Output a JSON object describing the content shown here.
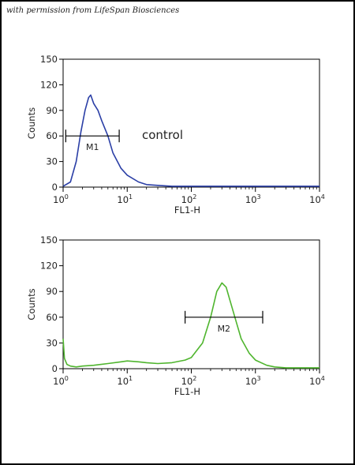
{
  "credit": "with permission from LifeSpan Biosciences",
  "chart_data": [
    {
      "type": "line",
      "xlabel": "FL1-H",
      "ylabel": "Counts",
      "xscale": "log",
      "xlim": [
        1,
        10000
      ],
      "ylim": [
        0,
        150
      ],
      "yticks": [
        0,
        30,
        60,
        90,
        120,
        150
      ],
      "xtick_bases": [
        "10",
        "10",
        "10",
        "10",
        "10"
      ],
      "xtick_exps": [
        "0",
        "1",
        "2",
        "3",
        "4"
      ],
      "grid": false,
      "annotation": "control",
      "series": [
        {
          "color": "#2b3fa6",
          "x": [
            1.0,
            1.3,
            1.6,
            1.9,
            2.2,
            2.5,
            2.7,
            3.0,
            3.5,
            4.0,
            5.0,
            6.0,
            8.0,
            10,
            15,
            20,
            30,
            50,
            100,
            200,
            500,
            1000,
            2000,
            5000,
            10000
          ],
          "y": [
            1,
            6,
            30,
            65,
            90,
            105,
            108,
            98,
            90,
            78,
            60,
            40,
            22,
            14,
            6,
            3,
            2,
            1,
            1,
            1,
            1,
            1,
            1,
            1,
            1
          ]
        }
      ],
      "markers": [
        {
          "label": "M1",
          "x_start": 1.1,
          "x_end": 7.5,
          "y": 60
        }
      ]
    },
    {
      "type": "line",
      "xlabel": "FL1-H",
      "ylabel": "Counts",
      "xscale": "log",
      "xlim": [
        1,
        10000
      ],
      "ylim": [
        0,
        150
      ],
      "yticks": [
        0,
        30,
        60,
        90,
        120,
        150
      ],
      "xtick_bases": [
        "10",
        "10",
        "10",
        "10",
        "10"
      ],
      "xtick_exps": [
        "0",
        "1",
        "2",
        "3",
        "4"
      ],
      "grid": false,
      "series": [
        {
          "color": "#4fb52e",
          "x": [
            1.0,
            1.05,
            1.15,
            1.3,
            1.6,
            2,
            3,
            5,
            8,
            10,
            15,
            20,
            30,
            50,
            80,
            100,
            150,
            200,
            250,
            300,
            350,
            400,
            500,
            600,
            800,
            1000,
            1500,
            2000,
            3000,
            5000,
            10000
          ],
          "y": [
            35,
            12,
            5,
            3,
            2,
            3,
            4,
            6,
            8,
            9,
            8,
            7,
            6,
            7,
            10,
            13,
            30,
            60,
            90,
            100,
            95,
            80,
            55,
            35,
            18,
            10,
            4,
            2,
            1,
            1,
            1
          ]
        }
      ],
      "markers": [
        {
          "label": "M2",
          "x_start": 80,
          "x_end": 1300,
          "y": 60
        }
      ]
    }
  ]
}
